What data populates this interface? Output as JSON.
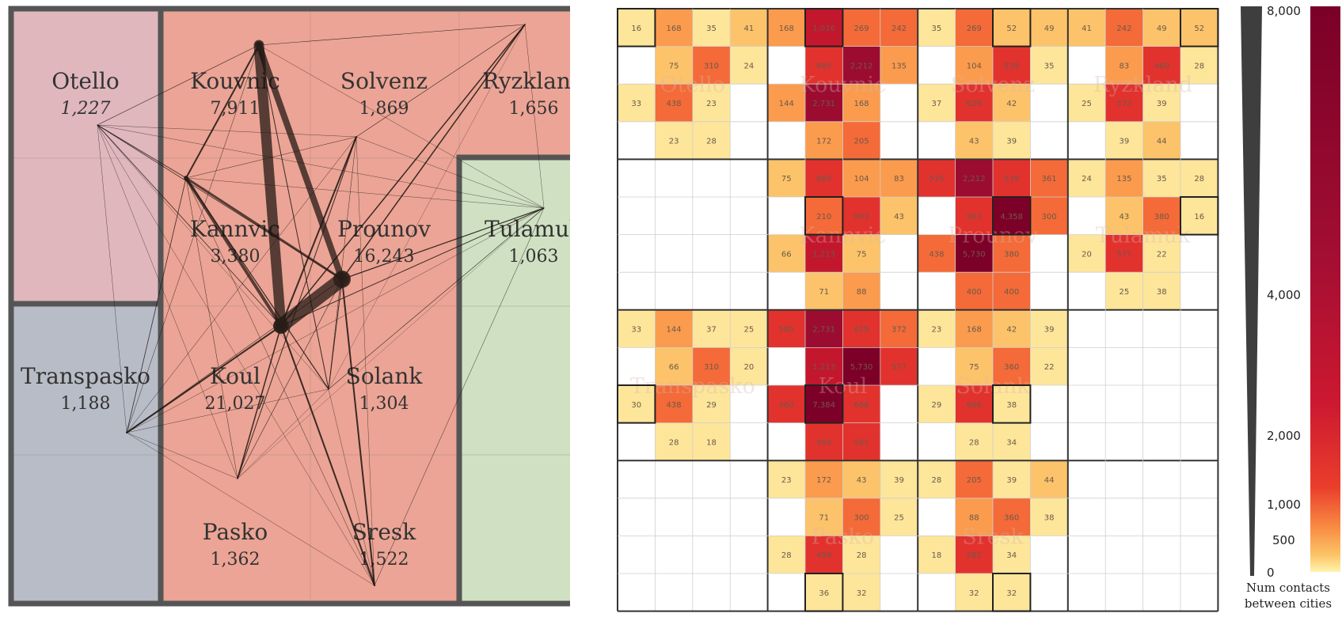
{
  "regions": [
    {
      "id": "otello",
      "color": "#dfb7bd"
    },
    {
      "id": "transpasko",
      "color": "#b8bcc6"
    },
    {
      "id": "main",
      "color": "#eba495"
    },
    {
      "id": "tulamuk",
      "color": "#cfe1c2"
    }
  ],
  "cities": [
    {
      "name": "Otello",
      "pop": "1,227",
      "italic": true
    },
    {
      "name": "Kouvnic",
      "pop": "7,911",
      "italic": false
    },
    {
      "name": "Solvenz",
      "pop": "1,869",
      "italic": false
    },
    {
      "name": "Ryzkland",
      "pop": "1,656",
      "italic": false
    },
    {
      "name": "Kannvic",
      "pop": "3,380",
      "italic": false
    },
    {
      "name": "Prounov",
      "pop": "16,243",
      "italic": false
    },
    {
      "name": "Tulamuk",
      "pop": "1,063",
      "italic": false
    },
    {
      "name": "Transpasko",
      "pop": "1,188",
      "italic": false
    },
    {
      "name": "Koul",
      "pop": "21,027",
      "italic": false
    },
    {
      "name": "Solank",
      "pop": "1,304",
      "italic": false
    },
    {
      "name": "Pasko",
      "pop": "1,362",
      "italic": false
    },
    {
      "name": "Sresk",
      "pop": "1,522",
      "italic": false
    }
  ],
  "matrix": {
    "rows": [
      [
        "16",
        "168",
        "35",
        "41",
        "168",
        "1,016",
        "269",
        "242",
        "35",
        "269",
        "52",
        "49",
        "41",
        "242",
        "49",
        "52"
      ],
      [
        "",
        "75",
        "310",
        "24",
        "",
        "665",
        "2,212",
        "135",
        "",
        "104",
        "535",
        "35",
        "",
        "83",
        "460",
        "28"
      ],
      [
        "33",
        "438",
        "23",
        "",
        "144",
        "2,731",
        "168",
        "",
        "37",
        "629",
        "42",
        "",
        "25",
        "573",
        "39",
        ""
      ],
      [
        "",
        "23",
        "28",
        "",
        "",
        "172",
        "205",
        "",
        "",
        "43",
        "39",
        "",
        "",
        "39",
        "44",
        ""
      ],
      [
        "",
        "",
        "",
        "",
        "75",
        "665",
        "104",
        "83",
        "535",
        "2,212",
        "535",
        "361",
        "24",
        "135",
        "35",
        "28"
      ],
      [
        "",
        "",
        "",
        "",
        "",
        "210",
        "903",
        "43",
        "",
        "903",
        "4,358",
        "300",
        "",
        "43",
        "380",
        "16"
      ],
      [
        "",
        "",
        "",
        "",
        "66",
        "1,213",
        "75",
        "",
        "438",
        "5,730",
        "380",
        "",
        "20",
        "577",
        "22",
        ""
      ],
      [
        "",
        "",
        "",
        "",
        "",
        "71",
        "88",
        "",
        "",
        "400",
        "400",
        "",
        "",
        "25",
        "38",
        ""
      ],
      [
        "33",
        "144",
        "37",
        "25",
        "580",
        "2,731",
        "629",
        "372",
        "23",
        "168",
        "42",
        "39",
        "",
        "",
        "",
        ""
      ],
      [
        "",
        "66",
        "310",
        "20",
        "",
        "1,213",
        "5,730",
        "577",
        "",
        "75",
        "360",
        "22",
        "",
        "",
        "",
        ""
      ],
      [
        "30",
        "438",
        "29",
        "",
        "460",
        "7,384",
        "666",
        "",
        "29",
        "666",
        "38",
        "",
        "",
        "",
        "",
        ""
      ],
      [
        "",
        "28",
        "18",
        "",
        "",
        "499",
        "581",
        "",
        "",
        "28",
        "34",
        "",
        "",
        "",
        "",
        ""
      ],
      [
        "",
        "",
        "",
        "",
        "23",
        "172",
        "43",
        "39",
        "28",
        "205",
        "39",
        "44",
        "",
        "",
        "",
        ""
      ],
      [
        "",
        "",
        "",
        "",
        "",
        "71",
        "300",
        "25",
        "",
        "88",
        "360",
        "38",
        "",
        "",
        "",
        ""
      ],
      [
        "",
        "",
        "",
        "",
        "28",
        "499",
        "28",
        "",
        "18",
        "581",
        "34",
        "",
        "",
        "",
        "",
        ""
      ],
      [
        "",
        "",
        "",
        "",
        "",
        "36",
        "32",
        "",
        "",
        "32",
        "32",
        "",
        "",
        "",
        "",
        ""
      ]
    ]
  },
  "legend": {
    "ticks": [
      "8,000",
      "4,000",
      "2,000",
      "1,000",
      "500",
      "0"
    ],
    "title_line1": "Num contacts",
    "title_line2": "between cities"
  }
}
